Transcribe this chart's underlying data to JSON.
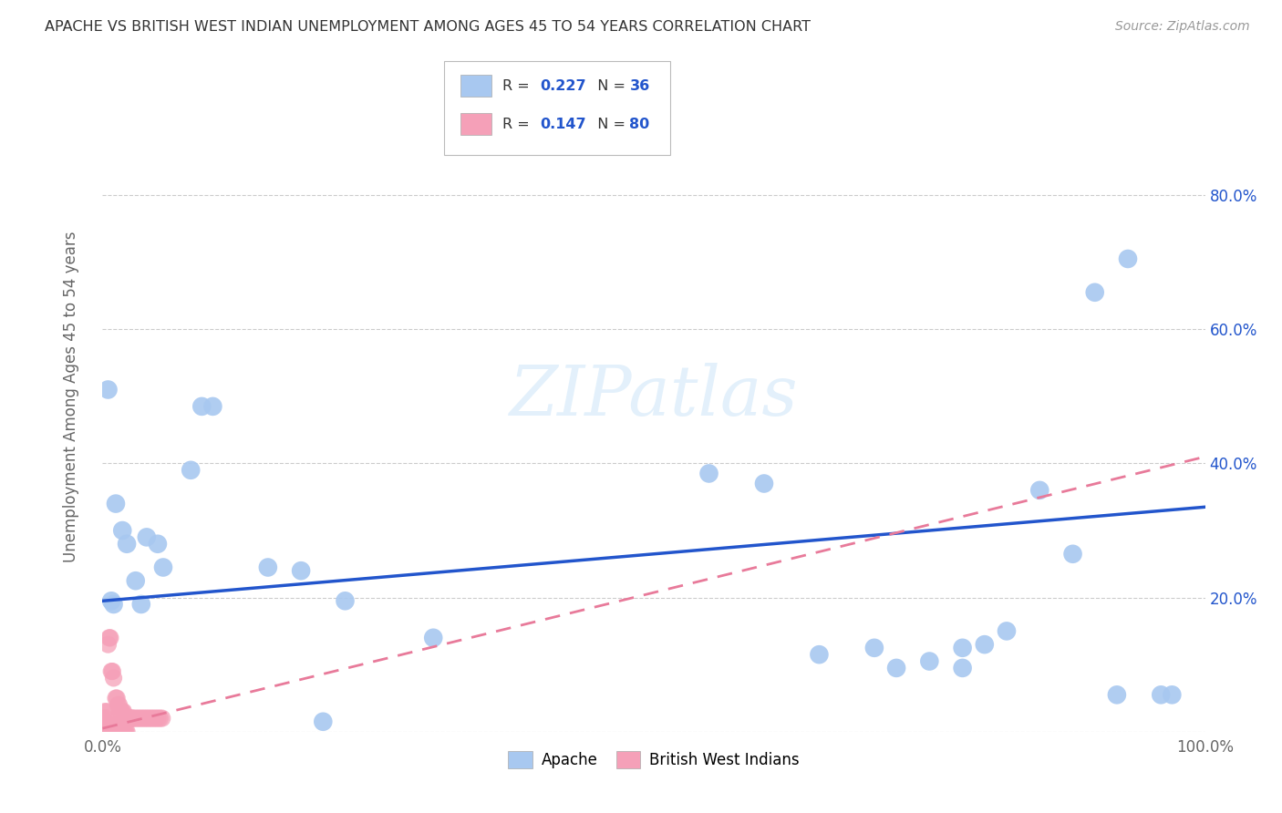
{
  "title": "APACHE VS BRITISH WEST INDIAN UNEMPLOYMENT AMONG AGES 45 TO 54 YEARS CORRELATION CHART",
  "source": "Source: ZipAtlas.com",
  "ylabel": "Unemployment Among Ages 45 to 54 years",
  "xlim": [
    0.0,
    1.0
  ],
  "ylim": [
    0.0,
    1.0
  ],
  "apache_color": "#a8c8f0",
  "bwi_color": "#f5a0b8",
  "apache_line_color": "#2255cc",
  "bwi_line_color": "#e87a9a",
  "apache_R": 0.227,
  "apache_N": 36,
  "bwi_R": 0.147,
  "bwi_N": 80,
  "apache_line_x0": 0.0,
  "apache_line_y0": 0.195,
  "apache_line_x1": 1.0,
  "apache_line_y1": 0.335,
  "bwi_line_x0": 0.0,
  "bwi_line_y0": 0.005,
  "bwi_line_x1": 1.0,
  "bwi_line_y1": 0.41,
  "apache_scatter": [
    [
      0.005,
      0.51
    ],
    [
      0.012,
      0.34
    ],
    [
      0.018,
      0.3
    ],
    [
      0.022,
      0.28
    ],
    [
      0.03,
      0.225
    ],
    [
      0.04,
      0.29
    ],
    [
      0.05,
      0.28
    ],
    [
      0.055,
      0.245
    ],
    [
      0.08,
      0.39
    ],
    [
      0.09,
      0.485
    ],
    [
      0.1,
      0.485
    ],
    [
      0.15,
      0.245
    ],
    [
      0.18,
      0.24
    ],
    [
      0.22,
      0.195
    ],
    [
      0.3,
      0.14
    ],
    [
      0.55,
      0.385
    ],
    [
      0.6,
      0.37
    ],
    [
      0.65,
      0.115
    ],
    [
      0.7,
      0.125
    ],
    [
      0.72,
      0.095
    ],
    [
      0.75,
      0.105
    ],
    [
      0.78,
      0.095
    ],
    [
      0.82,
      0.15
    ],
    [
      0.85,
      0.36
    ],
    [
      0.88,
      0.265
    ],
    [
      0.9,
      0.655
    ],
    [
      0.92,
      0.055
    ],
    [
      0.93,
      0.705
    ],
    [
      0.96,
      0.055
    ],
    [
      0.97,
      0.055
    ],
    [
      0.008,
      0.195
    ],
    [
      0.01,
      0.19
    ],
    [
      0.035,
      0.19
    ],
    [
      0.2,
      0.015
    ],
    [
      0.8,
      0.13
    ],
    [
      0.78,
      0.125
    ]
  ],
  "bwi_scatter": [
    [
      0.0,
      0.0
    ],
    [
      0.0,
      0.0
    ],
    [
      0.001,
      0.0
    ],
    [
      0.001,
      0.01
    ],
    [
      0.002,
      0.0
    ],
    [
      0.002,
      0.01
    ],
    [
      0.003,
      0.0
    ],
    [
      0.003,
      0.01
    ],
    [
      0.004,
      0.0
    ],
    [
      0.004,
      0.01
    ],
    [
      0.005,
      0.0
    ],
    [
      0.005,
      0.01
    ],
    [
      0.006,
      0.0
    ],
    [
      0.006,
      0.01
    ],
    [
      0.007,
      0.0
    ],
    [
      0.007,
      0.01
    ],
    [
      0.008,
      0.0
    ],
    [
      0.008,
      0.01
    ],
    [
      0.009,
      0.0
    ],
    [
      0.009,
      0.01
    ],
    [
      0.01,
      0.0
    ],
    [
      0.01,
      0.01
    ],
    [
      0.011,
      0.0
    ],
    [
      0.011,
      0.01
    ],
    [
      0.012,
      0.0
    ],
    [
      0.012,
      0.01
    ],
    [
      0.013,
      0.0
    ],
    [
      0.013,
      0.01
    ],
    [
      0.014,
      0.0
    ],
    [
      0.014,
      0.01
    ],
    [
      0.015,
      0.0
    ],
    [
      0.015,
      0.01
    ],
    [
      0.016,
      0.0
    ],
    [
      0.016,
      0.01
    ],
    [
      0.017,
      0.0
    ],
    [
      0.018,
      0.0
    ],
    [
      0.019,
      0.0
    ],
    [
      0.02,
      0.0
    ],
    [
      0.021,
      0.0
    ],
    [
      0.022,
      0.0
    ],
    [
      0.0,
      0.02
    ],
    [
      0.002,
      0.03
    ],
    [
      0.003,
      0.02
    ],
    [
      0.004,
      0.03
    ],
    [
      0.005,
      0.13
    ],
    [
      0.006,
      0.14
    ],
    [
      0.007,
      0.14
    ],
    [
      0.008,
      0.09
    ],
    [
      0.009,
      0.09
    ],
    [
      0.01,
      0.08
    ],
    [
      0.012,
      0.05
    ],
    [
      0.013,
      0.05
    ],
    [
      0.014,
      0.04
    ],
    [
      0.015,
      0.04
    ],
    [
      0.016,
      0.03
    ],
    [
      0.017,
      0.03
    ],
    [
      0.018,
      0.03
    ],
    [
      0.019,
      0.03
    ],
    [
      0.02,
      0.02
    ],
    [
      0.021,
      0.02
    ],
    [
      0.022,
      0.02
    ],
    [
      0.023,
      0.02
    ],
    [
      0.024,
      0.02
    ],
    [
      0.025,
      0.02
    ],
    [
      0.026,
      0.02
    ],
    [
      0.027,
      0.02
    ],
    [
      0.028,
      0.02
    ],
    [
      0.03,
      0.02
    ],
    [
      0.032,
      0.02
    ],
    [
      0.034,
      0.02
    ],
    [
      0.036,
      0.02
    ],
    [
      0.038,
      0.02
    ],
    [
      0.04,
      0.02
    ],
    [
      0.042,
      0.02
    ],
    [
      0.044,
      0.02
    ],
    [
      0.046,
      0.02
    ],
    [
      0.048,
      0.02
    ],
    [
      0.05,
      0.02
    ],
    [
      0.052,
      0.02
    ],
    [
      0.054,
      0.02
    ]
  ],
  "watermark_text": "ZIPatlas",
  "bg_color": "#ffffff",
  "grid_color": "#cccccc"
}
